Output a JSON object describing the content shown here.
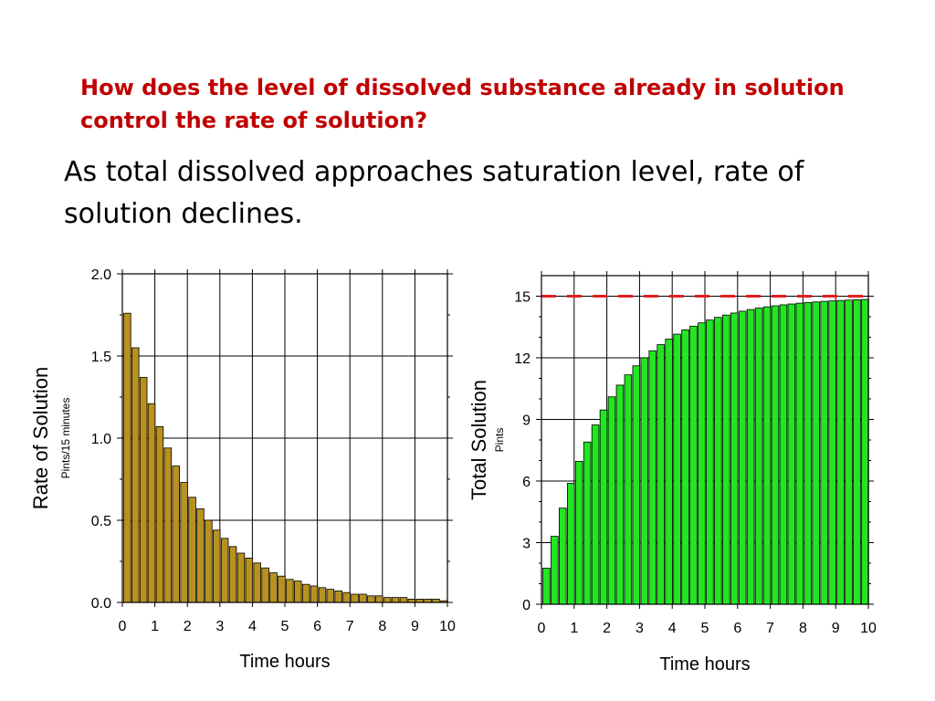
{
  "slide": {
    "question": "How does the level of dissolved substance already in solution control the rate of solution?",
    "statement": "As total dissolved approaches saturation level, rate of solution declines."
  },
  "colors": {
    "question": "#c00000",
    "rate_bar_fill": "#b8911f",
    "total_bar_fill": "#22e622",
    "saturation_line": "#e02020"
  },
  "chart_data": [
    {
      "type": "bar",
      "ylabel": "Rate of Solution",
      "ylabel_sub": "Pints/15 minutes",
      "xlabel": "Time hours",
      "xlim": [
        0,
        10
      ],
      "ylim": [
        0,
        2
      ],
      "xticks": [
        "0",
        "1",
        "2",
        "3",
        "4",
        "5",
        "6",
        "7",
        "8",
        "9",
        "10"
      ],
      "yticks": [
        "0.0",
        "0.5",
        "1.0",
        "1.5",
        "2.0"
      ],
      "grid": true,
      "bar_width_hours": 0.25,
      "x": [
        0,
        0.25,
        0.5,
        0.75,
        1,
        1.25,
        1.5,
        1.75,
        2,
        2.25,
        2.5,
        2.75,
        3,
        3.25,
        3.5,
        3.75,
        4,
        4.25,
        4.5,
        4.75,
        5,
        5.25,
        5.5,
        5.75,
        6,
        6.25,
        6.5,
        6.75,
        7,
        7.25,
        7.5,
        7.75,
        8,
        8.25,
        8.5,
        8.75,
        9,
        9.25,
        9.5,
        9.75
      ],
      "values": [
        1.76,
        1.55,
        1.37,
        1.21,
        1.07,
        0.94,
        0.83,
        0.73,
        0.64,
        0.57,
        0.5,
        0.44,
        0.39,
        0.34,
        0.3,
        0.27,
        0.24,
        0.21,
        0.18,
        0.16,
        0.14,
        0.13,
        0.11,
        0.1,
        0.09,
        0.08,
        0.07,
        0.06,
        0.05,
        0.05,
        0.04,
        0.04,
        0.03,
        0.03,
        0.03,
        0.02,
        0.02,
        0.02,
        0.02,
        0.01
      ]
    },
    {
      "type": "bar",
      "ylabel": "Total Solution",
      "ylabel_sub": "Pints",
      "xlabel": "Time hours",
      "xlim": [
        0,
        10
      ],
      "ylim": [
        0,
        16
      ],
      "xticks": [
        "0",
        "1",
        "2",
        "3",
        "4",
        "5",
        "6",
        "7",
        "8",
        "9",
        "10"
      ],
      "yticks": [
        "0",
        "3",
        "6",
        "9",
        "12",
        "15"
      ],
      "ytick_values": [
        0,
        3,
        6,
        9,
        12,
        15
      ],
      "grid": true,
      "saturation_level": 15,
      "bar_width_hours": 0.25,
      "x": [
        0,
        0.25,
        0.5,
        0.75,
        1,
        1.25,
        1.5,
        1.75,
        2,
        2.25,
        2.5,
        2.75,
        3,
        3.25,
        3.5,
        3.75,
        4,
        4.25,
        4.5,
        4.75,
        5,
        5.25,
        5.5,
        5.75,
        6,
        6.25,
        6.5,
        6.75,
        7,
        7.25,
        7.5,
        7.75,
        8,
        8.25,
        8.5,
        8.75,
        9,
        9.25,
        9.5,
        9.75
      ],
      "values": [
        1.76,
        3.31,
        4.68,
        5.89,
        6.96,
        7.9,
        8.73,
        9.46,
        10.1,
        10.67,
        11.17,
        11.61,
        12.0,
        12.34,
        12.64,
        12.91,
        13.15,
        13.36,
        13.54,
        13.7,
        13.84,
        13.97,
        14.08,
        14.18,
        14.27,
        14.35,
        14.42,
        14.48,
        14.53,
        14.58,
        14.62,
        14.66,
        14.69,
        14.72,
        14.75,
        14.77,
        14.79,
        14.81,
        14.83,
        14.84
      ]
    }
  ]
}
